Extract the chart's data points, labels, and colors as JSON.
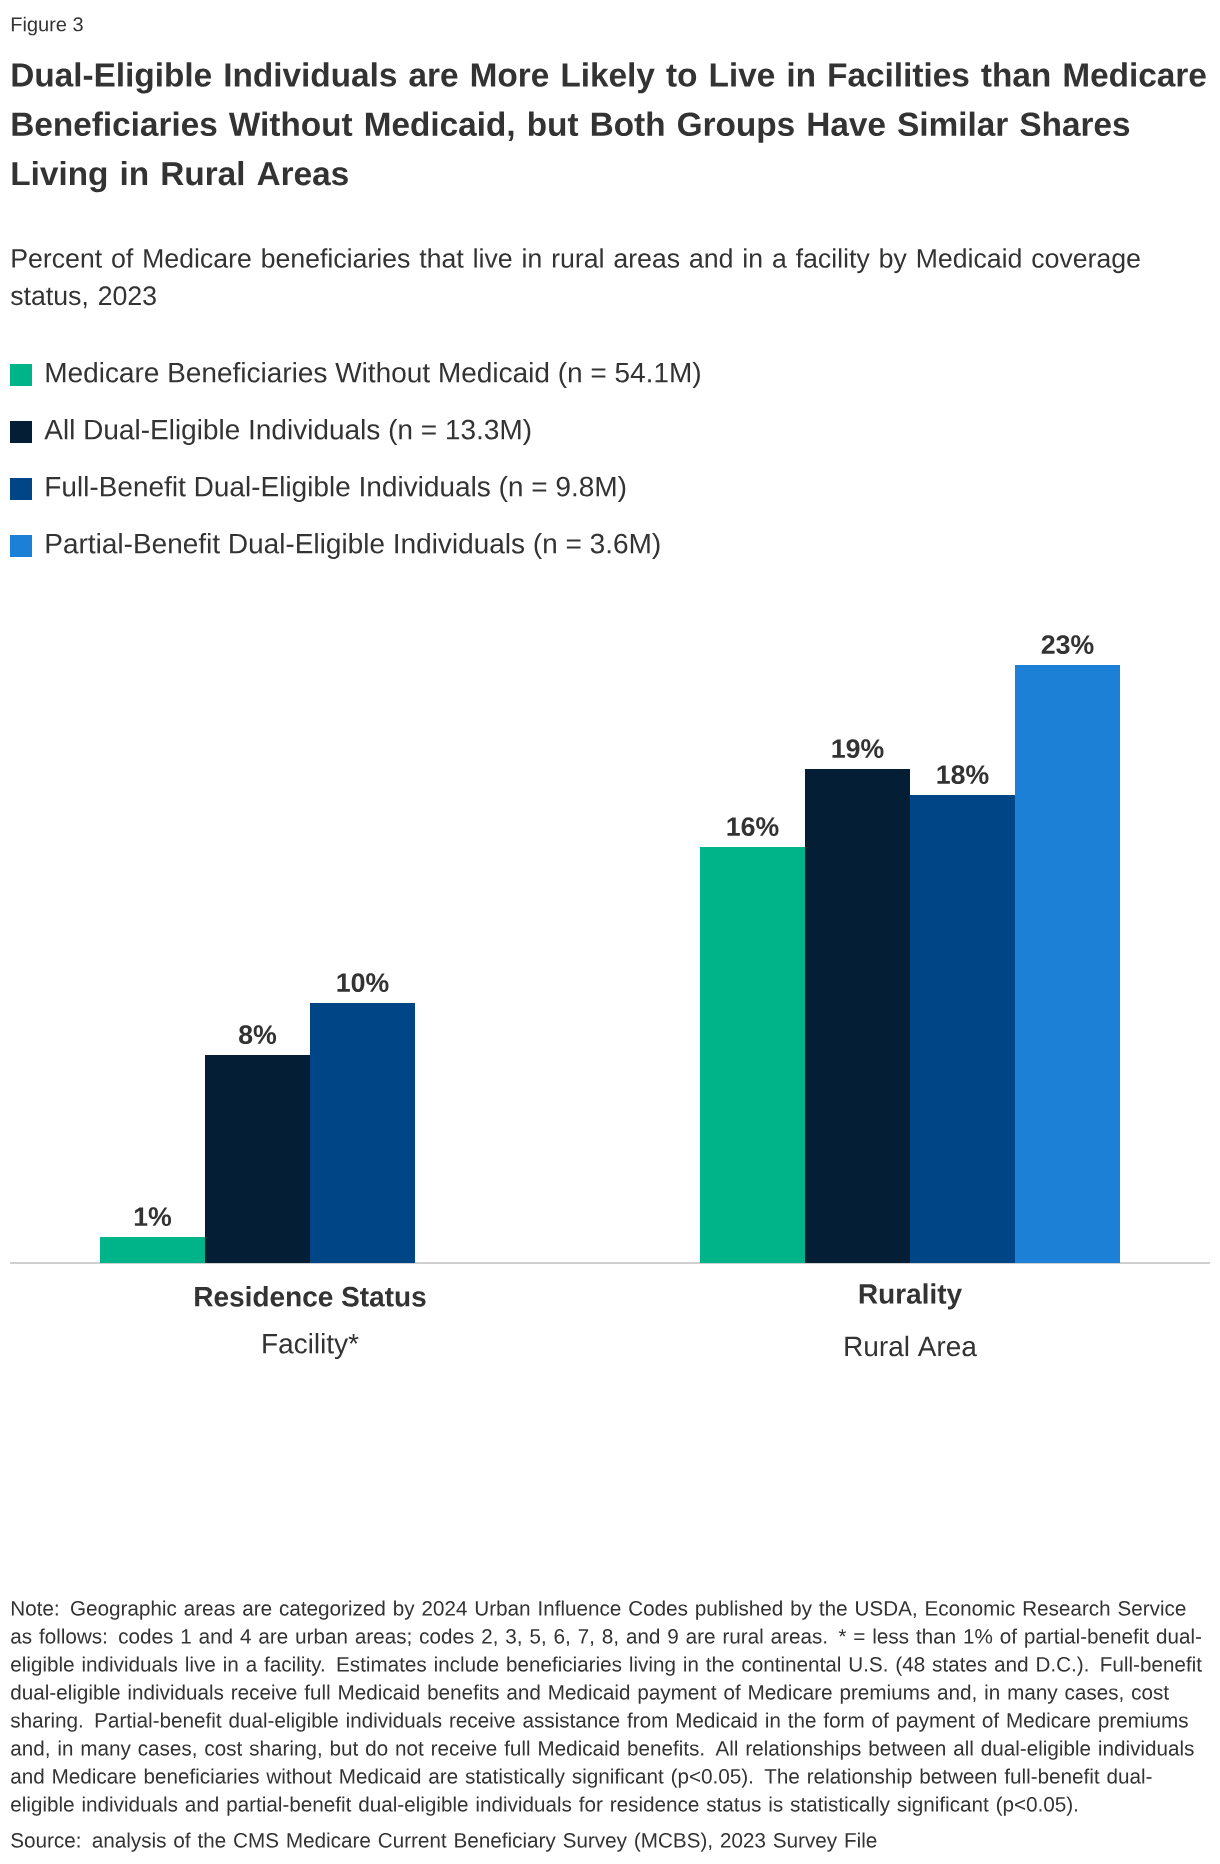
{
  "chart_data": {
    "type": "bar",
    "title": "Dual-Eligible Individuals are More Likely to Live in Facilities than Medicare Beneficiaries Without Medicaid, but Both Groups Have Similar Shares Living in Rural Areas",
    "subtitle": "Percent of Medicare beneficiaries that live in rural areas and in a facility by Medicaid coverage status, 2023",
    "categories": [
      "Facility*",
      "Rural Area"
    ],
    "series": [
      {
        "name": "Medicare Beneficiaries Without Medicaid (n = 54.1M)",
        "color": "#00b48a",
        "values": [
          1,
          16
        ],
        "value_labels": [
          "1%",
          "16%"
        ]
      },
      {
        "name": "All Dual-Eligible Individuals (n = 13.3M)",
        "color": "#041e36",
        "values": [
          8,
          19
        ],
        "value_labels": [
          "8%",
          "19%"
        ]
      },
      {
        "name": "Full-Benefit Dual-Eligible Individuals (n = 9.8M)",
        "color": "#004586",
        "values": [
          10,
          18
        ],
        "value_labels": [
          "10%",
          "18%"
        ]
      },
      {
        "name": "Partial-Benefit Dual-Eligible Individuals (n = 3.6M)",
        "color": "#1d80d7",
        "values": [
          null,
          23
        ],
        "value_labels": [
          null,
          "23%"
        ]
      }
    ],
    "legend": "top left",
    "annotations": [
      "Figure 3",
      "Residence Status",
      "Rurality",
      "Note: Geographic areas are categorized by 2024 Urban Influence Codes published by the USDA, Economic Research Service as follows: codes 1 and 4 are urban areas; codes 2, 3, 5, 6, 7, 8, and 9 are rural areas. * = less than 1% of partial-benefit dual-eligible individuals live in a facility. Estimates include beneficiaries living in the continental U.S. (48 states and D.C.).  Full-benefit dual-eligible individuals receive full Medicaid benefits and Medicaid payment of Medicare premiums and, in many cases, cost sharing. Partial-benefit dual-eligible individuals receive assistance from Medicaid in the form of payment of Medicare premiums and, in many cases, cost sharing, but do not receive full Medicaid benefits. All relationships between all dual-eligible individuals and Medicare beneficiaries without Medicaid are statistically significant (p<0.05). The relationship between full-benefit dual-eligible individuals and partial-benefit dual-eligible individuals for residence status is statistically significant (p<0.05).",
      "Source: analysis of the CMS Medicare Current Beneficiary Survey (MCBS), 2023 Survey File"
    ]
  }
}
